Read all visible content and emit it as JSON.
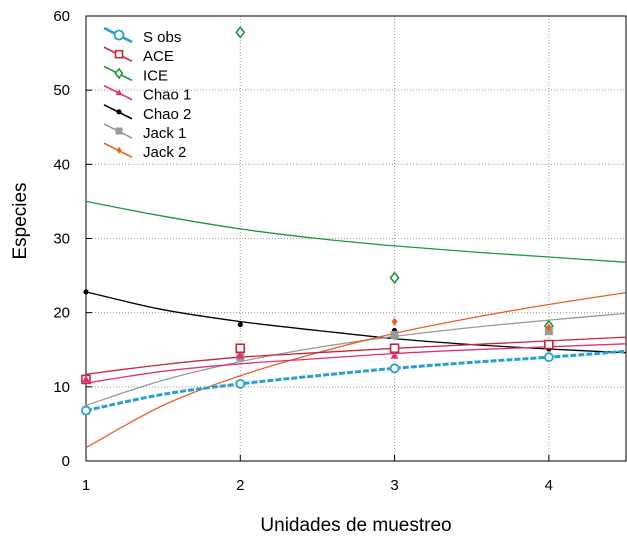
{
  "chart_data": {
    "type": "scatter",
    "title": "",
    "xlabel": "Unidades de muestreo",
    "ylabel": "Especies",
    "xlim": [
      1,
      4.5
    ],
    "ylim": [
      0,
      60
    ],
    "xticks": [
      1,
      2,
      3,
      4
    ],
    "yticks": [
      0,
      10,
      20,
      30,
      40,
      50,
      60
    ],
    "grid": true,
    "legend_position": "top-left",
    "series": [
      {
        "name": "S obs",
        "color": "#2aa0d0",
        "marker": "circle-open",
        "dashed": true,
        "x": [
          1,
          2,
          3,
          4
        ],
        "y": [
          6.8,
          10.4,
          12.5,
          14.0
        ],
        "curve": {
          "x": [
            1,
            1.5,
            2,
            2.5,
            3,
            3.5,
            4,
            4.5
          ],
          "y": [
            6.8,
            9.0,
            10.4,
            11.5,
            12.5,
            13.3,
            14.0,
            14.8
          ]
        }
      },
      {
        "name": "ACE",
        "color": "#c0283c",
        "marker": "square-open",
        "x": [
          1,
          2,
          3,
          4
        ],
        "y": [
          11.0,
          15.2,
          15.2,
          15.7
        ],
        "curve": {
          "x": [
            1,
            1.5,
            2,
            2.5,
            3,
            3.5,
            4,
            4.5
          ],
          "y": [
            11.7,
            13.0,
            14.0,
            14.6,
            15.2,
            15.7,
            16.2,
            16.7
          ]
        }
      },
      {
        "name": "ICE",
        "color": "#1e9640",
        "marker": "diamond-open",
        "x": [
          2,
          3,
          4
        ],
        "y": [
          57.8,
          24.7,
          18.2
        ],
        "curve": {
          "x": [
            1,
            1.5,
            2,
            2.5,
            3,
            3.5,
            4,
            4.5
          ],
          "y": [
            35.0,
            33.0,
            31.3,
            30.0,
            29.0,
            28.2,
            27.5,
            26.8
          ]
        }
      },
      {
        "name": "Chao 1",
        "color": "#e0307a",
        "marker": "triangle",
        "x": [
          1,
          2,
          3,
          4
        ],
        "y": [
          11.0,
          14.2,
          14.2,
          14.0
        ],
        "curve": {
          "x": [
            1,
            1.5,
            2,
            2.5,
            3,
            3.5,
            4,
            4.5
          ],
          "y": [
            10.5,
            12.1,
            13.1,
            13.8,
            14.5,
            15.0,
            15.4,
            15.8
          ]
        }
      },
      {
        "name": "Chao 2",
        "color": "#000000",
        "marker": "dot",
        "x": [
          1,
          2,
          3,
          4
        ],
        "y": [
          22.8,
          18.4,
          17.6,
          15.1
        ],
        "curve": {
          "x": [
            1,
            1.5,
            2,
            2.5,
            3,
            3.5,
            4,
            4.5
          ],
          "y": [
            22.8,
            20.4,
            18.8,
            17.6,
            16.5,
            15.7,
            15.1,
            14.6
          ]
        }
      },
      {
        "name": "Jack 1",
        "color": "#999999",
        "marker": "square",
        "x": [
          1,
          2,
          3,
          4
        ],
        "y": [
          6.8,
          14.0,
          17.0,
          17.5
        ],
        "curve": {
          "x": [
            1,
            1.5,
            2,
            2.5,
            3,
            3.5,
            4,
            4.5
          ],
          "y": [
            7.5,
            10.9,
            13.4,
            15.3,
            16.8,
            18.0,
            19.0,
            19.9
          ]
        }
      },
      {
        "name": "Jack 2",
        "color": "#e8602a",
        "marker": "diamond",
        "x": [
          2,
          3,
          4
        ],
        "y": [
          14.2,
          18.8,
          18.0
        ],
        "curve": {
          "x": [
            1,
            1.5,
            2,
            2.5,
            3,
            3.5,
            4,
            4.5
          ],
          "y": [
            1.8,
            7.5,
            11.5,
            14.6,
            17.2,
            19.3,
            21.1,
            22.7
          ]
        }
      }
    ]
  }
}
